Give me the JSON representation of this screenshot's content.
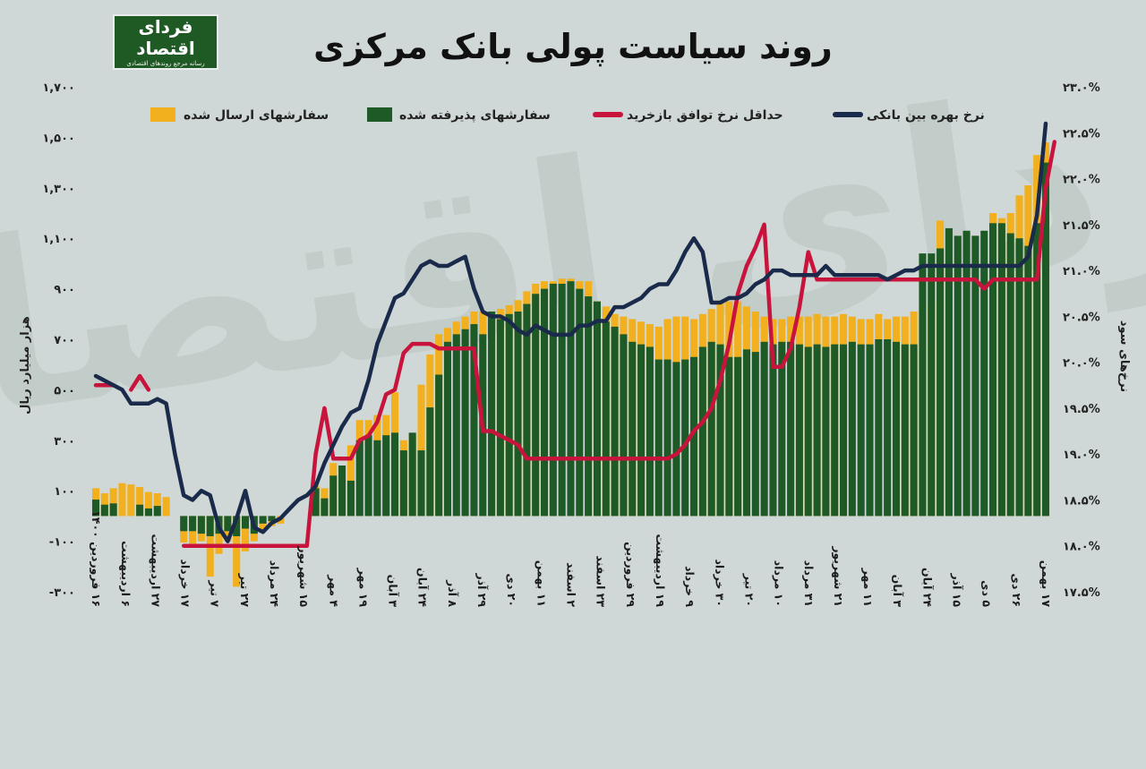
{
  "logo": {
    "name": "فردای اقتصاد",
    "tagline": "رسانه مرجع روندهای اقتصادی"
  },
  "chart_data": {
    "type": "bar+line",
    "title": "روند سیاست پولی بانک مرکزی",
    "ylabel_left": "هزار میلیارد ریال",
    "ylabel_right": "نرخ‌های سود",
    "left_axis": {
      "min": -300,
      "max": 1700,
      "ticks": [
        -300,
        -100,
        100,
        300,
        500,
        700,
        900,
        1100,
        1300,
        1500,
        1700
      ],
      "tick_labels": [
        "-۳۰۰",
        "-۱۰۰",
        "۱۰۰",
        "۳۰۰",
        "۵۰۰",
        "۷۰۰",
        "۹۰۰",
        "۱,۱۰۰",
        "۱,۳۰۰",
        "۱,۵۰۰",
        "۱,۷۰۰"
      ]
    },
    "right_axis": {
      "min": 17.5,
      "max": 23.0,
      "ticks": [
        17.5,
        18.0,
        18.5,
        19.0,
        19.5,
        20.0,
        20.5,
        21.0,
        21.5,
        22.0,
        22.5,
        23.0
      ],
      "tick_labels": [
        "۱۷.۵%",
        "۱۸.۰%",
        "۱۸.۵%",
        "۱۹.۰%",
        "۱۹.۵%",
        "۲۰.۰%",
        "۲۰.۵%",
        "۲۱.۰%",
        "۲۱.۵%",
        "۲۲.۰%",
        "۲۲.۵%",
        "۲۳.۰%"
      ]
    },
    "x_tick_labels": [
      "۱۶ فروردین ۱۴۰۰",
      "۶ اردیبهشت",
      "۲۷ اردیبهشت",
      "۱۷ خرداد",
      "۷ تیر",
      "۲۷ تیر",
      "۲۴ مرداد",
      "۱۵ شهریور",
      "۴ مهر",
      "۱۹ مهر",
      "۳ آبان",
      "۲۴ آبان",
      "۸ آذر",
      "۲۹ آذر",
      "۲۰ دی",
      "۱۱ بهمن",
      "۲ اسفند",
      "۲۳ اسفند",
      "۲۹ فروردین",
      "۱۹ اردیبهشت",
      "۹ خرداد",
      "۳۰ خرداد",
      "۲۰ تیر",
      "۱۰ مرداد",
      "۳۱ مرداد",
      "۲۱ شهریور",
      "۱۱ مهر",
      "۳ آبان",
      "۲۴ آبان",
      "۱۵ آذر",
      "۵ دی",
      "۲۶ دی",
      "۱۷ بهمن"
    ],
    "legend": [
      "نرخ بهره بین بانکی",
      "حداقل نرخ توافق بازخرید",
      "سفارشهای پذیرفته شده",
      "سفارشهای ارسال شده"
    ],
    "colors": {
      "submitted": "#f2b01e",
      "accepted": "#1e5a26",
      "min_repo": "#c8143c",
      "interbank": "#1a2a4a"
    },
    "submitted": [
      110,
      90,
      110,
      130,
      125,
      115,
      95,
      90,
      75,
      0,
      -105,
      -110,
      -100,
      -240,
      -150,
      -100,
      -280,
      -140,
      -100,
      -60,
      -40,
      -30,
      0,
      0,
      0,
      120,
      110,
      210,
      140,
      280,
      380,
      380,
      400,
      400,
      490,
      300,
      320,
      520,
      640,
      720,
      745,
      770,
      790,
      810,
      810,
      810,
      820,
      835,
      855,
      890,
      920,
      930,
      930,
      940,
      940,
      930,
      930,
      850,
      830,
      800,
      790,
      780,
      770,
      760,
      750,
      780,
      790,
      790,
      780,
      800,
      820,
      850,
      850,
      850,
      830,
      810,
      790,
      780,
      780,
      790,
      790,
      790,
      800,
      790,
      790,
      800,
      790,
      780,
      780,
      800,
      780,
      790,
      790,
      810,
      840,
      840,
      1170,
      1010,
      1060,
      1090,
      1110,
      1100,
      1200,
      1180,
      1200,
      1270,
      1310,
      1430,
      1480
    ],
    "accepted": [
      65,
      45,
      50,
      0,
      0,
      45,
      30,
      40,
      0,
      0,
      -60,
      -60,
      -70,
      -80,
      -70,
      -60,
      -80,
      -50,
      -70,
      -30,
      -20,
      0,
      0,
      0,
      0,
      110,
      70,
      160,
      200,
      140,
      300,
      320,
      300,
      320,
      330,
      260,
      330,
      260,
      430,
      560,
      690,
      720,
      740,
      760,
      720,
      810,
      780,
      800,
      810,
      840,
      880,
      900,
      920,
      920,
      930,
      900,
      870,
      850,
      770,
      750,
      720,
      690,
      680,
      670,
      620,
      620,
      610,
      620,
      630,
      670,
      690,
      680,
      630,
      630,
      660,
      650,
      690,
      680,
      690,
      690,
      680,
      670,
      680,
      670,
      680,
      680,
      690,
      680,
      680,
      700,
      700,
      690,
      680,
      680,
      1040,
      1040,
      1060,
      1140,
      1110,
      1130,
      1110,
      1130,
      1160,
      1160,
      1120,
      1100,
      1070,
      1160,
      1400
    ],
    "min_repo": [
      19.75,
      19.75,
      19.75,
      null,
      19.7,
      19.85,
      19.7,
      null,
      null,
      null,
      18.0,
      18.0,
      18.0,
      18.0,
      18.0,
      18.0,
      18.0,
      18.0,
      18.0,
      18.0,
      18.0,
      18.0,
      18.0,
      18.0,
      18.0,
      19.0,
      19.5,
      18.95,
      18.95,
      18.95,
      19.15,
      19.2,
      19.35,
      19.65,
      19.7,
      20.1,
      20.2,
      20.2,
      20.2,
      20.15,
      20.15,
      20.15,
      20.15,
      20.15,
      19.25,
      19.25,
      19.2,
      19.15,
      19.1,
      18.95,
      18.95,
      18.95,
      18.95,
      18.95,
      18.95,
      18.95,
      18.95,
      18.95,
      18.95,
      18.95,
      18.95,
      18.95,
      18.95,
      18.95,
      18.95,
      18.95,
      19.0,
      19.1,
      19.25,
      19.35,
      19.5,
      19.8,
      20.2,
      20.75,
      21.05,
      21.25,
      21.5,
      19.95,
      19.95,
      20.15,
      20.6,
      21.2,
      20.9,
      20.9,
      20.9,
      20.9,
      20.9,
      20.9,
      20.9,
      20.9,
      20.9,
      20.9,
      20.9,
      20.9,
      20.9,
      20.9,
      20.9,
      20.9,
      20.9,
      20.9,
      20.9,
      20.8,
      20.9,
      20.9,
      20.9,
      20.9,
      20.9,
      20.9,
      21.9,
      22.4
    ],
    "interbank": [
      19.85,
      19.8,
      19.75,
      19.7,
      19.55,
      19.55,
      19.55,
      19.6,
      19.55,
      19.0,
      18.55,
      18.5,
      18.6,
      18.55,
      18.2,
      18.05,
      18.3,
      18.6,
      18.2,
      18.15,
      18.25,
      18.3,
      18.4,
      18.5,
      18.55,
      18.65,
      18.9,
      19.1,
      19.3,
      19.45,
      19.5,
      19.8,
      20.2,
      20.45,
      20.7,
      20.75,
      20.9,
      21.05,
      21.1,
      21.05,
      21.05,
      21.1,
      21.15,
      20.8,
      20.55,
      20.5,
      20.5,
      20.45,
      20.35,
      20.3,
      20.4,
      20.35,
      20.3,
      20.3,
      20.3,
      20.4,
      20.4,
      20.45,
      20.45,
      20.6,
      20.6,
      20.65,
      20.7,
      20.8,
      20.85,
      20.85,
      21.0,
      21.2,
      21.35,
      21.2,
      20.65,
      20.65,
      20.7,
      20.7,
      20.75,
      20.85,
      20.9,
      21.0,
      21.0,
      20.95,
      20.95,
      20.95,
      20.95,
      21.05,
      20.95,
      20.95,
      20.95,
      20.95,
      20.95,
      20.95,
      20.9,
      20.95,
      21.0,
      21.0,
      21.05,
      21.05,
      21.05,
      21.05,
      21.05,
      21.05,
      21.05,
      21.05,
      21.05,
      21.05,
      21.05,
      21.05,
      21.15,
      21.6,
      22.6
    ]
  }
}
